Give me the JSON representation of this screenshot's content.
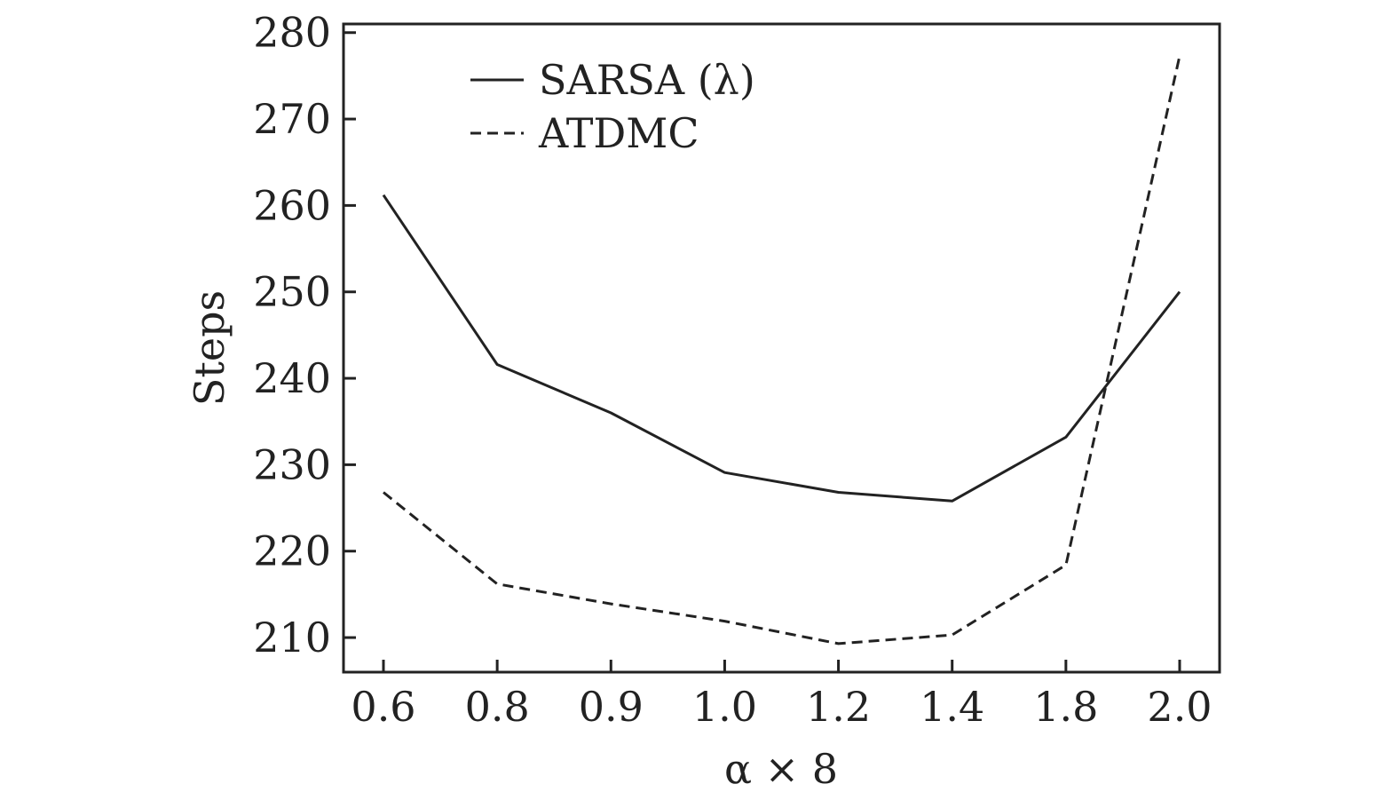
{
  "chart_data": {
    "type": "line",
    "x": [
      "0.6",
      "0.8",
      "0.9",
      "1.0",
      "1.2",
      "1.4",
      "1.8",
      "2.0"
    ],
    "xlabel": "α × 8",
    "ylabel": "Steps",
    "ylim": [
      206,
      281
    ],
    "yticks": [
      210,
      220,
      230,
      240,
      250,
      260,
      270,
      280
    ],
    "grid": false,
    "legend_position": "top-left",
    "series": [
      {
        "name": "SARSA (λ)",
        "style": "solid",
        "color": "#222222",
        "values": [
          261.2,
          241.6,
          236,
          229.1,
          226.8,
          225.8,
          233.2,
          250
        ]
      },
      {
        "name": "ATDMC",
        "style": "dashed",
        "color": "#222222",
        "values": [
          226.8,
          216.2,
          213.9,
          211.9,
          209.3,
          210.3,
          218.4,
          277.3
        ]
      }
    ]
  }
}
